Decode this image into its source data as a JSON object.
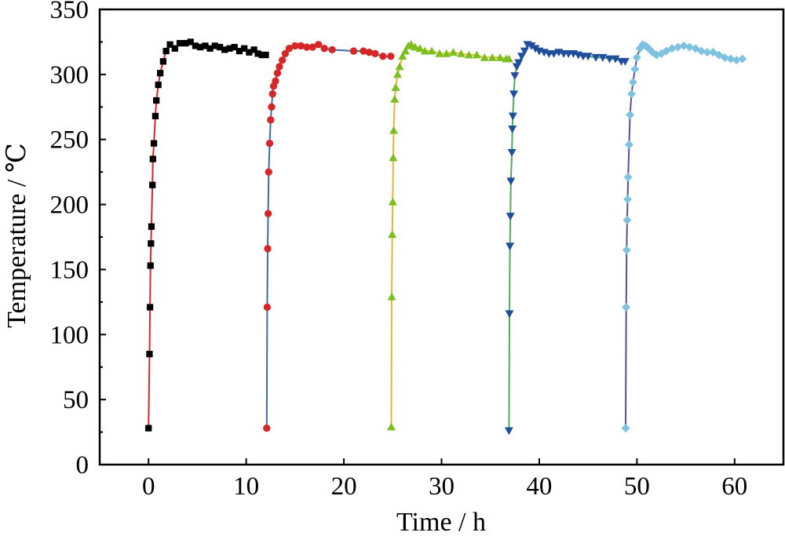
{
  "chart_data": {
    "type": "line",
    "xlabel": "Time / h",
    "ylabel": "Temperature / ℃",
    "xlim": [
      -5,
      65
    ],
    "ylim": [
      0,
      350
    ],
    "x_ticks": [
      0,
      10,
      20,
      30,
      40,
      50,
      60
    ],
    "y_ticks": [
      0,
      50,
      100,
      150,
      200,
      250,
      300,
      350
    ],
    "grid": false,
    "legend": "none",
    "series": [
      {
        "color": "#000000",
        "line_color": "#d62728",
        "marker": "square",
        "points": [
          [
            0,
            28
          ],
          [
            0.1,
            85
          ],
          [
            0.15,
            121
          ],
          [
            0.2,
            153
          ],
          [
            0.25,
            170
          ],
          [
            0.3,
            183
          ],
          [
            0.4,
            215
          ],
          [
            0.45,
            235
          ],
          [
            0.55,
            247
          ],
          [
            0.7,
            268
          ],
          [
            0.8,
            280
          ],
          [
            1.0,
            292
          ],
          [
            1.2,
            301
          ],
          [
            1.5,
            310
          ],
          [
            1.8,
            318
          ],
          [
            2.2,
            323
          ],
          [
            2.7,
            320
          ],
          [
            3.2,
            324
          ],
          [
            3.8,
            324
          ],
          [
            4.3,
            325
          ],
          [
            4.8,
            322
          ],
          [
            5.3,
            321
          ],
          [
            5.8,
            322
          ],
          [
            6.3,
            320
          ],
          [
            6.8,
            322
          ],
          [
            7.3,
            321
          ],
          [
            7.8,
            319
          ],
          [
            8.3,
            320
          ],
          [
            8.8,
            321
          ],
          [
            9.3,
            318
          ],
          [
            9.8,
            320
          ],
          [
            10.3,
            317
          ],
          [
            10.8,
            319
          ],
          [
            11.2,
            316
          ],
          [
            11.6,
            315
          ],
          [
            12.0,
            315
          ]
        ]
      },
      {
        "color": "#d62728",
        "line_color": "#3d6aa8",
        "marker": "circle",
        "points": [
          [
            12.1,
            28
          ],
          [
            12.15,
            121
          ],
          [
            12.2,
            166
          ],
          [
            12.25,
            193
          ],
          [
            12.3,
            225
          ],
          [
            12.4,
            247
          ],
          [
            12.5,
            265
          ],
          [
            12.6,
            275
          ],
          [
            12.7,
            285
          ],
          [
            12.8,
            291
          ],
          [
            13.0,
            295
          ],
          [
            13.2,
            301
          ],
          [
            13.4,
            306
          ],
          [
            13.7,
            311
          ],
          [
            14.0,
            316
          ],
          [
            14.4,
            320
          ],
          [
            15.0,
            322
          ],
          [
            15.6,
            322
          ],
          [
            16.2,
            321
          ],
          [
            16.8,
            321
          ],
          [
            17.4,
            323
          ],
          [
            18.0,
            320
          ],
          [
            18.8,
            319
          ],
          [
            21.0,
            318
          ],
          [
            22.0,
            318
          ],
          [
            22.6,
            317
          ],
          [
            23.2,
            316
          ],
          [
            24.0,
            314
          ],
          [
            24.8,
            314
          ]
        ]
      },
      {
        "color": "#7cbf1e",
        "line_color": "#e8b432",
        "marker": "triangle-up",
        "points": [
          [
            24.85,
            29
          ],
          [
            24.9,
            129
          ],
          [
            24.95,
            177
          ],
          [
            25.0,
            202
          ],
          [
            25.05,
            236
          ],
          [
            25.1,
            257
          ],
          [
            25.2,
            281
          ],
          [
            25.3,
            290
          ],
          [
            25.5,
            300
          ],
          [
            25.7,
            306
          ],
          [
            26.0,
            314
          ],
          [
            26.3,
            318
          ],
          [
            26.6,
            322
          ],
          [
            26.9,
            323
          ],
          [
            27.3,
            321
          ],
          [
            27.8,
            320
          ],
          [
            28.3,
            318
          ],
          [
            29.0,
            318
          ],
          [
            29.8,
            316
          ],
          [
            30.5,
            316
          ],
          [
            31.2,
            317
          ],
          [
            32.0,
            316
          ],
          [
            32.8,
            315
          ],
          [
            33.6,
            315
          ],
          [
            34.4,
            313
          ],
          [
            35.2,
            313
          ],
          [
            36.0,
            313
          ],
          [
            36.6,
            312
          ],
          [
            36.9,
            312
          ]
        ]
      },
      {
        "color": "#1f4e9c",
        "line_color": "#4cad5a",
        "marker": "triangle-down",
        "points": [
          [
            36.9,
            26
          ],
          [
            36.95,
            116
          ],
          [
            37.0,
            168
          ],
          [
            37.05,
            191
          ],
          [
            37.1,
            218
          ],
          [
            37.2,
            240
          ],
          [
            37.25,
            258
          ],
          [
            37.3,
            268
          ],
          [
            37.4,
            285
          ],
          [
            37.5,
            299
          ],
          [
            37.7,
            306
          ],
          [
            37.9,
            309
          ],
          [
            38.2,
            314
          ],
          [
            38.5,
            318
          ],
          [
            38.8,
            323
          ],
          [
            39.2,
            322
          ],
          [
            39.6,
            320
          ],
          [
            40.0,
            318
          ],
          [
            40.5,
            317
          ],
          [
            41.0,
            316
          ],
          [
            41.5,
            316
          ],
          [
            42.0,
            317
          ],
          [
            42.5,
            316
          ],
          [
            43.0,
            316
          ],
          [
            43.5,
            316
          ],
          [
            44.0,
            315
          ],
          [
            44.5,
            314
          ],
          [
            45.0,
            314
          ],
          [
            45.8,
            313
          ],
          [
            46.5,
            313
          ],
          [
            47.2,
            312
          ],
          [
            47.8,
            312
          ],
          [
            48.4,
            310
          ],
          [
            48.8,
            310
          ]
        ]
      },
      {
        "color": "#7ec2e0",
        "line_color": "#5a4e93",
        "marker": "diamond",
        "points": [
          [
            48.85,
            28
          ],
          [
            48.9,
            121
          ],
          [
            48.95,
            165
          ],
          [
            49.0,
            188
          ],
          [
            49.05,
            204
          ],
          [
            49.1,
            221
          ],
          [
            49.2,
            246
          ],
          [
            49.3,
            269
          ],
          [
            49.45,
            285
          ],
          [
            49.6,
            294
          ],
          [
            49.8,
            304
          ],
          [
            50.0,
            313
          ],
          [
            50.3,
            320
          ],
          [
            50.6,
            323
          ],
          [
            50.9,
            322
          ],
          [
            51.2,
            320
          ],
          [
            51.6,
            317
          ],
          [
            52.0,
            315
          ],
          [
            52.5,
            316
          ],
          [
            53.0,
            318
          ],
          [
            53.6,
            320
          ],
          [
            54.2,
            321
          ],
          [
            54.8,
            322
          ],
          [
            55.4,
            321
          ],
          [
            56.0,
            320
          ],
          [
            56.6,
            318
          ],
          [
            57.2,
            317
          ],
          [
            57.8,
            317
          ],
          [
            58.4,
            315
          ],
          [
            59.0,
            313
          ],
          [
            59.6,
            312
          ],
          [
            60.2,
            311
          ],
          [
            60.8,
            312
          ]
        ]
      }
    ]
  }
}
